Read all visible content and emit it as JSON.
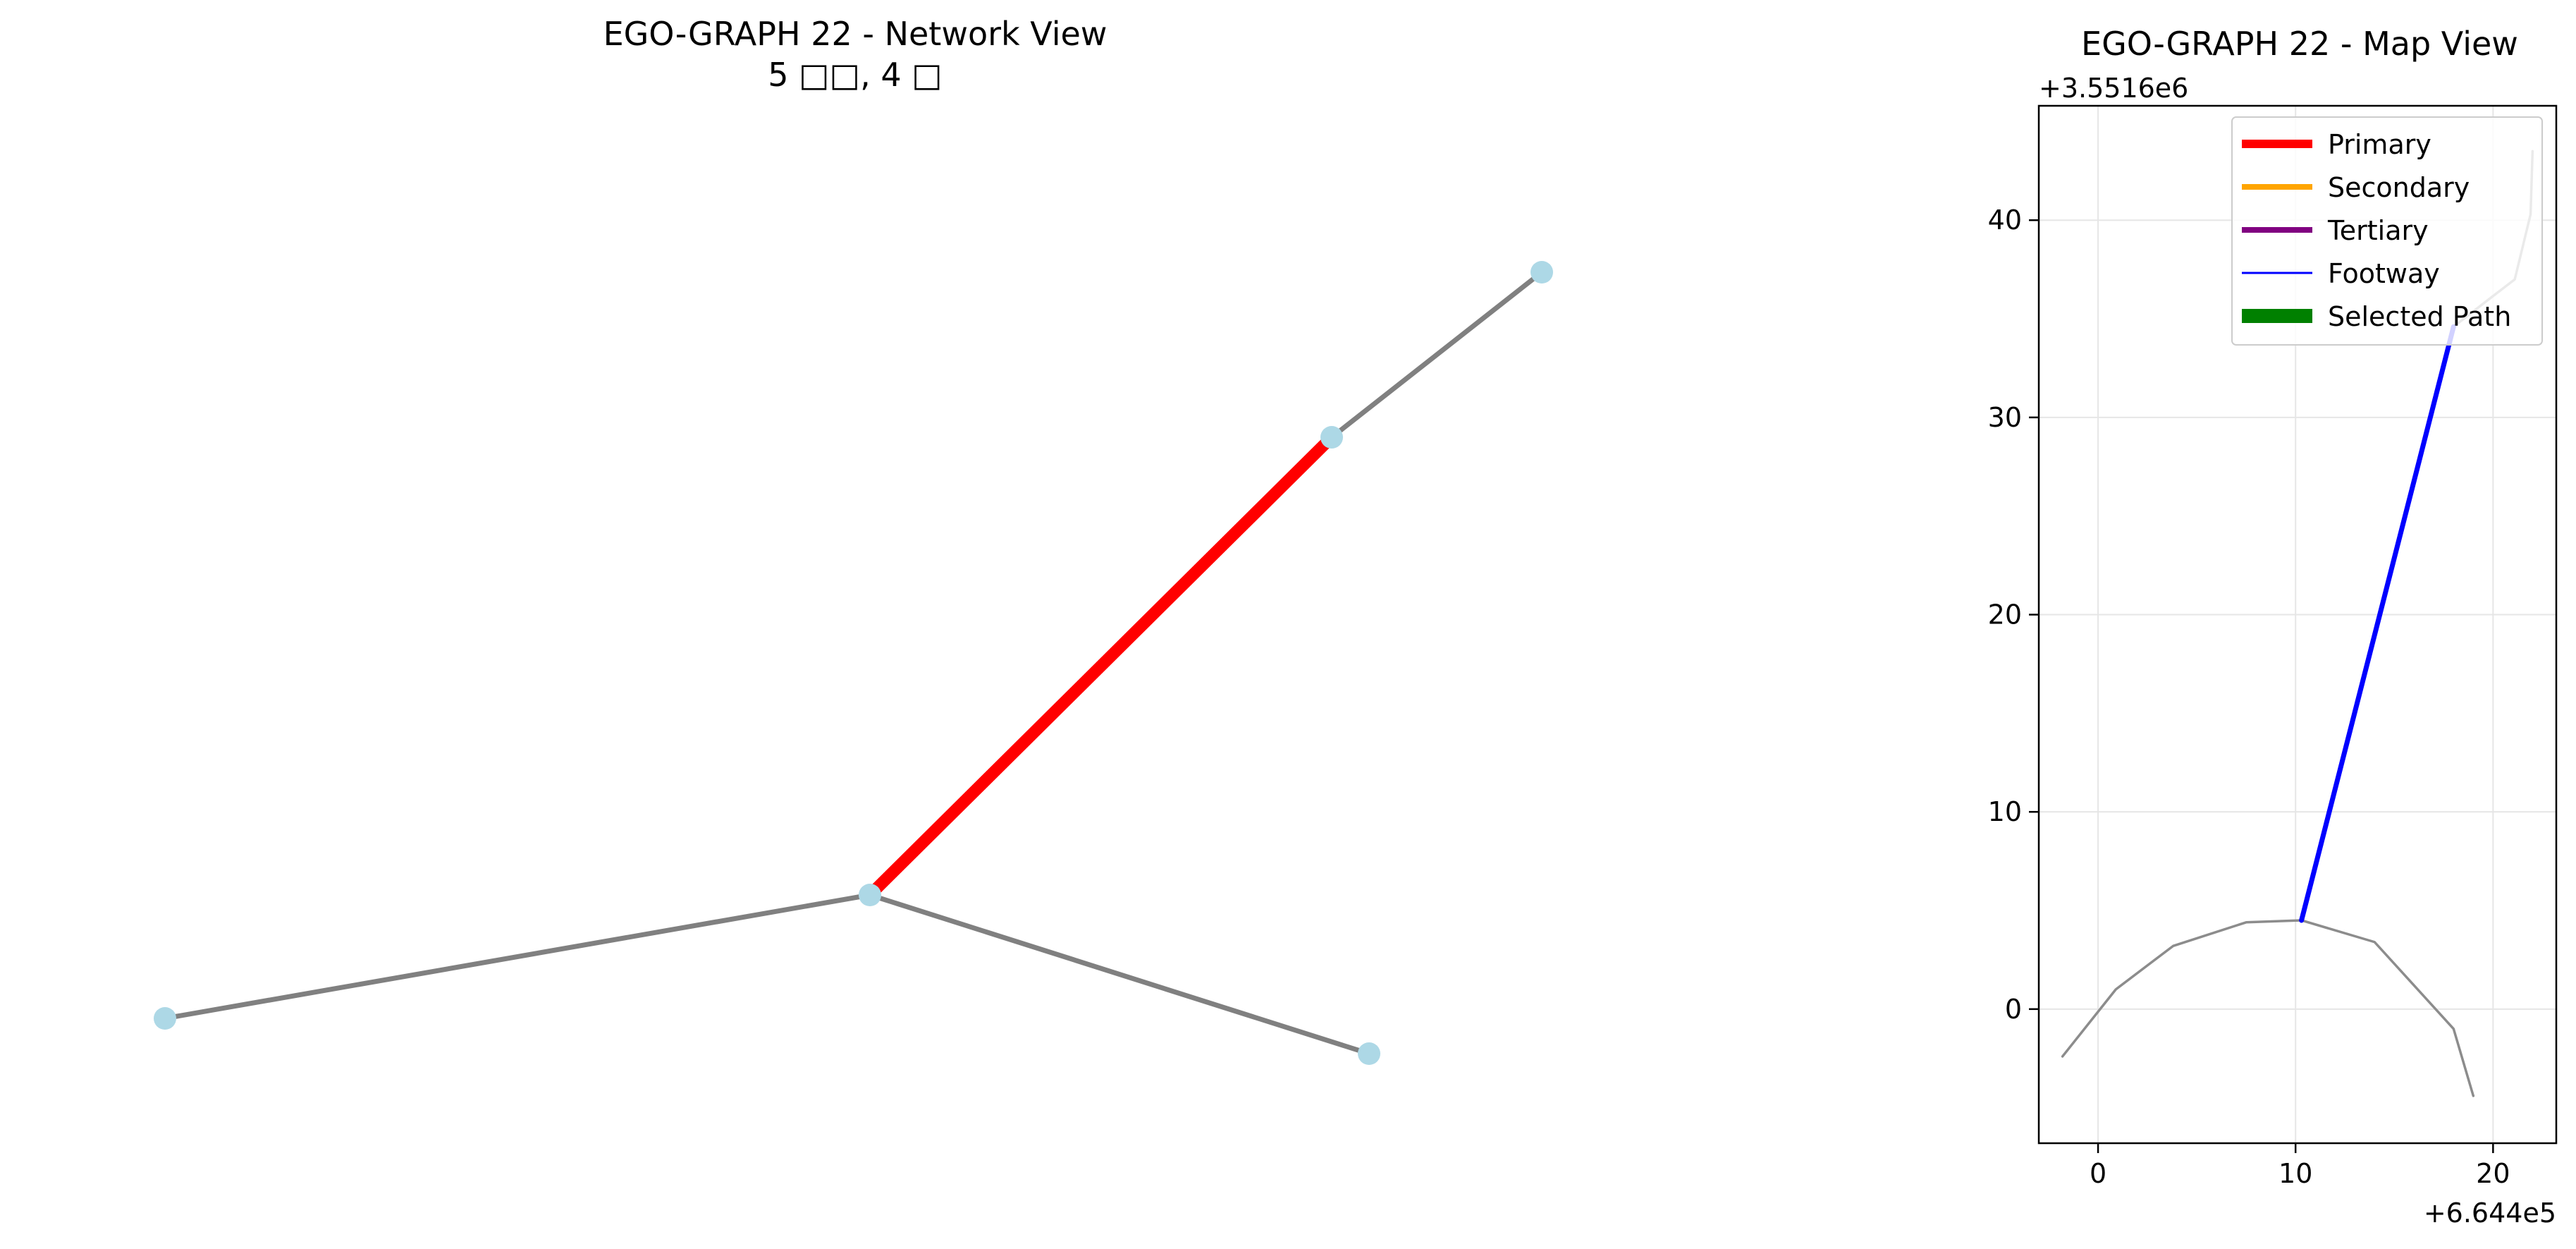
{
  "colors": {
    "node": "#add8e6",
    "edge_default": "#808080",
    "edge_highlight": "#ff0000",
    "map_street": "#8c8c8c",
    "footway": "#0000ff",
    "grid": "#e6e6e6"
  },
  "chart_data": [
    {
      "type": "network",
      "title": "EGO-GRAPH 22 - Network View",
      "subtitle": "5 □□, 4 □",
      "nodes": [
        {
          "x": 0.0,
          "y": 0.0
        },
        {
          "x": 1.0,
          "y": 0.175
        },
        {
          "x": 1.655,
          "y": 0.824
        },
        {
          "x": 1.953,
          "y": 1.058
        },
        {
          "x": 1.708,
          "y": -0.05
        }
      ],
      "edges": [
        {
          "source": 0,
          "target": 1,
          "highlight": false
        },
        {
          "source": 1,
          "target": 2,
          "highlight": true
        },
        {
          "source": 2,
          "target": 3,
          "highlight": false
        },
        {
          "source": 1,
          "target": 4,
          "highlight": false
        }
      ]
    },
    {
      "type": "line",
      "title": "EGO-GRAPH 22 - Map View",
      "x_offset_label": "+6.644e5",
      "y_offset_label": "+3.5516e6",
      "xlim": [
        -3,
        23.2
      ],
      "ylim": [
        -6.8,
        45.8
      ],
      "xticks": [
        0,
        10,
        20
      ],
      "yticks": [
        0,
        10,
        20,
        30,
        40
      ],
      "grid": true,
      "legend_position": "top-right",
      "legend": [
        {
          "label": "Primary",
          "color": "#ff0000",
          "style": "thick"
        },
        {
          "label": "Secondary",
          "color": "#ffa500",
          "style": "medium"
        },
        {
          "label": "Tertiary",
          "color": "#800080",
          "style": "medium"
        },
        {
          "label": "Footway",
          "color": "#0000ff",
          "style": "thin"
        },
        {
          "label": "Selected Path",
          "color": "#008000",
          "style": "thickest"
        }
      ],
      "series": [
        {
          "kind": "street",
          "x": [
            -1.8,
            0.9,
            3.8,
            7.5,
            10.3,
            14.0,
            18.0,
            19.0
          ],
          "y": [
            -2.4,
            1.0,
            3.2,
            4.4,
            4.5,
            3.4,
            -1.0,
            -4.4
          ]
        },
        {
          "kind": "street",
          "x": [
            18.0,
            19.8,
            21.1,
            21.9,
            22.0
          ],
          "y": [
            34.6,
            36.0,
            37.0,
            40.3,
            43.5
          ]
        },
        {
          "kind": "footway",
          "x": [
            10.3,
            18.0
          ],
          "y": [
            4.5,
            34.6
          ]
        }
      ]
    }
  ]
}
